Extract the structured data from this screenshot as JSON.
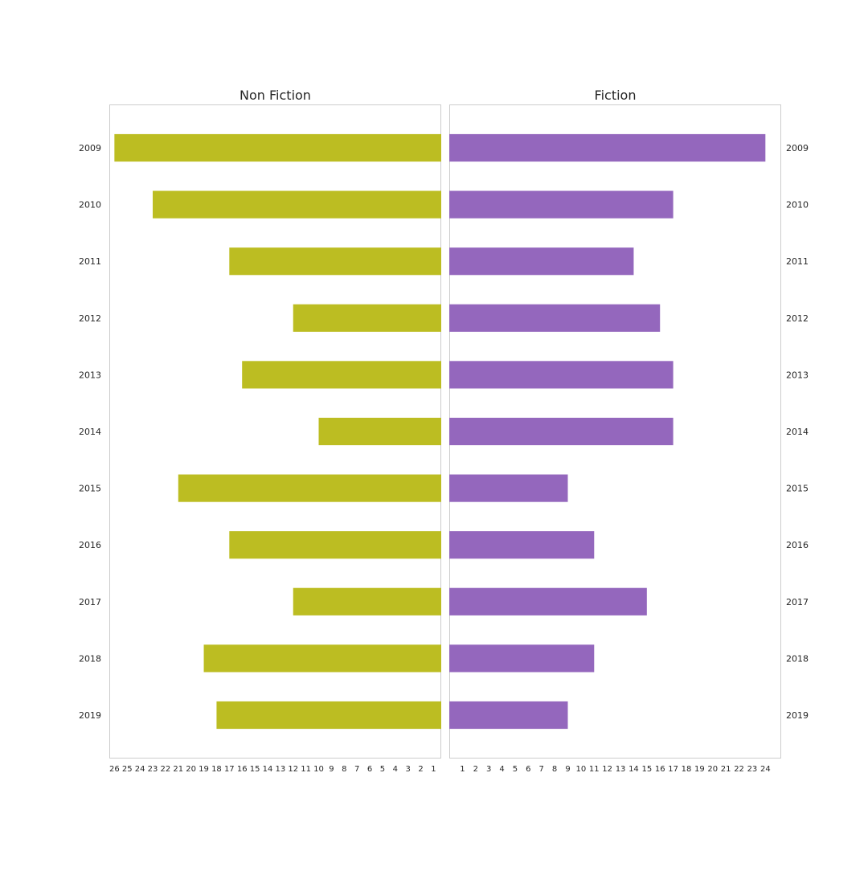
{
  "chart_data": [
    {
      "type": "bar",
      "orientation": "horizontal",
      "direction": "reversed",
      "title": "Non Fiction",
      "categories": [
        "2009",
        "2010",
        "2011",
        "2012",
        "2013",
        "2014",
        "2015",
        "2016",
        "2017",
        "2018",
        "2019"
      ],
      "values": [
        26,
        23,
        17,
        12,
        16,
        10,
        21,
        17,
        12,
        19,
        18
      ],
      "color": "#bcbd22",
      "xlim": [
        0.4,
        26.4
      ],
      "xticks": [
        26,
        25,
        24,
        23,
        22,
        21,
        20,
        19,
        18,
        17,
        16,
        15,
        14,
        13,
        12,
        11,
        10,
        9,
        8,
        7,
        6,
        5,
        4,
        3,
        2,
        1
      ],
      "ylabel_side": "left",
      "grid": false
    },
    {
      "type": "bar",
      "orientation": "horizontal",
      "direction": "normal",
      "title": "Fiction",
      "categories": [
        "2009",
        "2010",
        "2011",
        "2012",
        "2013",
        "2014",
        "2015",
        "2016",
        "2017",
        "2018",
        "2019"
      ],
      "values": [
        24,
        17,
        14,
        16,
        17,
        17,
        9,
        11,
        15,
        11,
        9
      ],
      "color": "#9467bd",
      "xlim": [
        0,
        25.2
      ],
      "xticks": [
        1,
        2,
        3,
        4,
        5,
        6,
        7,
        8,
        9,
        10,
        11,
        12,
        13,
        14,
        15,
        16,
        17,
        18,
        19,
        20,
        21,
        22,
        23,
        24
      ],
      "ylabel_side": "right",
      "grid": false
    }
  ]
}
